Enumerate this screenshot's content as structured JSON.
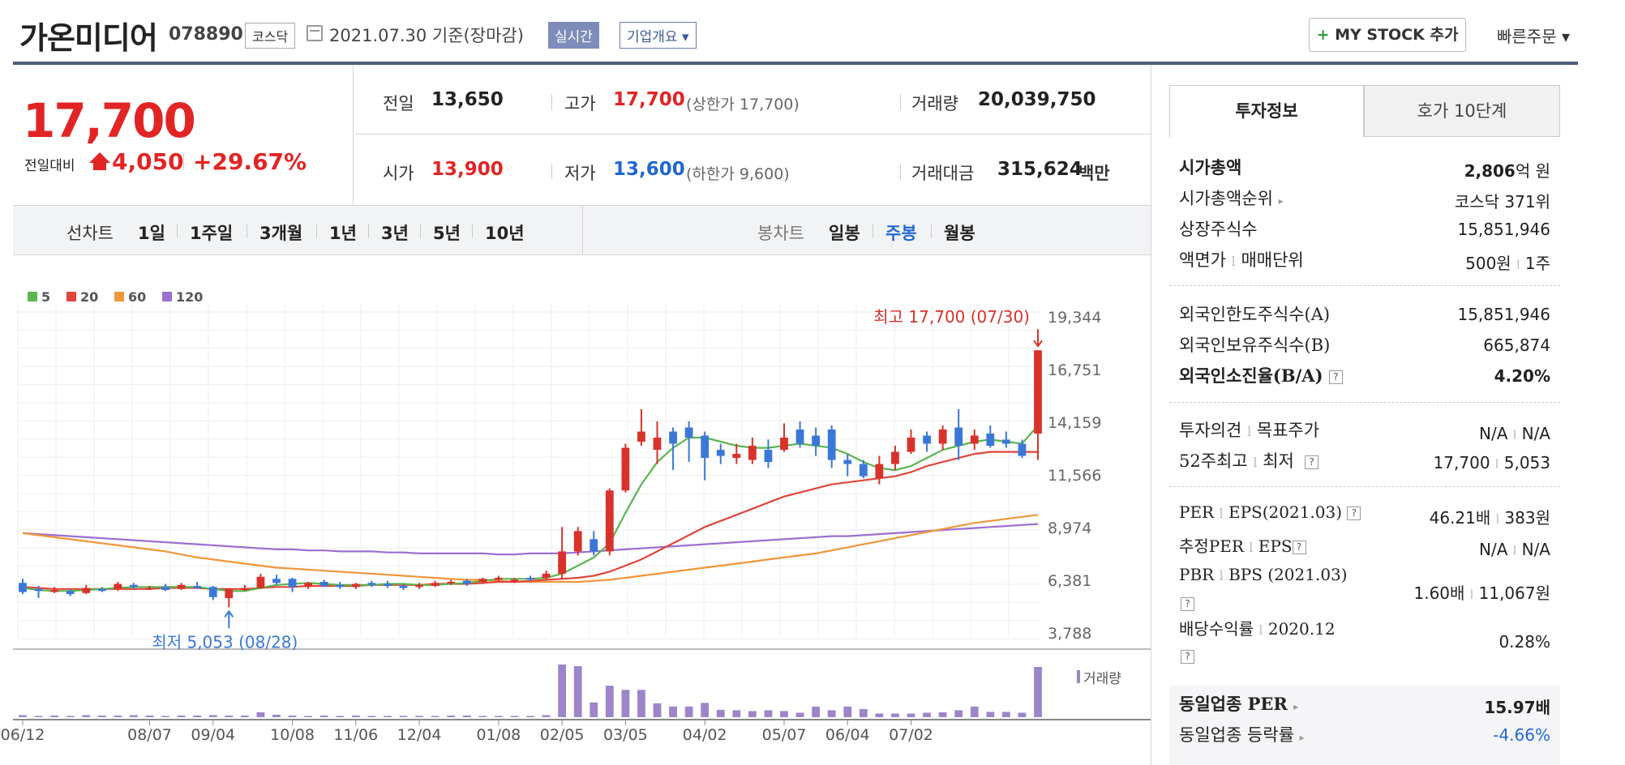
{
  "header": {
    "title": "가온미디어",
    "code": "078890",
    "market": "코스닥",
    "date": "2021.07.30  기준(장마감)",
    "realtime_label": "실시간",
    "company_label": "기업개요 ▾",
    "mystock_label": "MY STOCK 추가",
    "mystock_plus": "+",
    "quick_order": "빠른주문 ▾"
  },
  "price": {
    "current": "17,700",
    "change_label": "전일대비",
    "change_value": "4,050",
    "change_pct": "+29.67%"
  },
  "info": {
    "prev_label": "전일",
    "prev_value": "13,650",
    "high_label": "고가",
    "high_value": "17,700",
    "high_sub": "(상한가 17,700)",
    "volume_label": "거래량",
    "volume_value": "20,039,750",
    "open_label": "시가",
    "open_value": "13,900",
    "low_label": "저가",
    "low_value": "13,600",
    "low_sub": "(하한가 9,600)",
    "amount_label": "거래대금",
    "amount_value": "315,624",
    "amount_unit": "백만"
  },
  "period_bar": {
    "line_label": "선차트",
    "line_periods": [
      "1일",
      "1주일",
      "3개월",
      "1년",
      "3년",
      "5년",
      "10년"
    ],
    "candle_label": "봉차트",
    "candle_periods": [
      "일봉",
      "주봉",
      "월봉"
    ],
    "candle_selected": "주봉"
  },
  "chart_data": {
    "type": "candlestick",
    "legend": [
      {
        "name": "5",
        "color": "#5bb550"
      },
      {
        "name": "20",
        "color": "#e0453a"
      },
      {
        "name": "60",
        "color": "#f0953a"
      },
      {
        "name": "120",
        "color": "#9b6fd1"
      }
    ],
    "y_ticks": [
      "19,344",
      "16,751",
      "14,159",
      "11,566",
      "8,974",
      "6,381",
      "3,788"
    ],
    "ylim": [
      3788,
      19344
    ],
    "x_ticks": [
      "06/12",
      "08/07",
      "09/04",
      "10/08",
      "11/06",
      "12/04",
      "01/08",
      "02/05",
      "03/05",
      "04/02",
      "05/07",
      "06/04",
      "07/02"
    ],
    "high_annotation": "최고 17,700 (07/30)",
    "low_annotation": "최저 5,053 (08/28)",
    "volume_label": "거래량",
    "candles": [
      [
        6250,
        5800,
        6450,
        5700
      ],
      [
        5950,
        5850,
        6100,
        5500
      ],
      [
        5800,
        5900,
        6050,
        5750
      ],
      [
        5850,
        5700,
        5950,
        5600
      ],
      [
        5750,
        6000,
        6150,
        5700
      ],
      [
        5950,
        5850,
        6050,
        5800
      ],
      [
        5950,
        6200,
        6300,
        5850
      ],
      [
        6150,
        6050,
        6250,
        5950
      ],
      [
        6000,
        6000,
        6100,
        5900
      ],
      [
        6050,
        5900,
        6200,
        5850
      ],
      [
        5950,
        6150,
        6250,
        5900
      ],
      [
        6100,
        6000,
        6300,
        5950
      ],
      [
        6050,
        5550,
        6100,
        5400
      ],
      [
        5500,
        5950,
        6000,
        5053
      ],
      [
        5900,
        6000,
        6150,
        5850
      ],
      [
        6000,
        6550,
        6700,
        5950
      ],
      [
        6450,
        6250,
        6650,
        6150
      ],
      [
        6450,
        6050,
        6500,
        5800
      ],
      [
        6050,
        6250,
        6300,
        5950
      ],
      [
        6300,
        6100,
        6400,
        6050
      ],
      [
        6150,
        6050,
        6300,
        5950
      ],
      [
        6050,
        6200,
        6250,
        5950
      ],
      [
        6250,
        6150,
        6350,
        6050
      ],
      [
        6200,
        6100,
        6350,
        6000
      ],
      [
        6100,
        6000,
        6200,
        5900
      ],
      [
        6050,
        6150,
        6250,
        5950
      ],
      [
        6100,
        6250,
        6350,
        6050
      ],
      [
        6250,
        6300,
        6400,
        6150
      ],
      [
        6350,
        6200,
        6450,
        6100
      ],
      [
        6300,
        6450,
        6500,
        6200
      ],
      [
        6400,
        6500,
        6600,
        6300
      ],
      [
        6350,
        6400,
        6500,
        6250
      ],
      [
        6500,
        6450,
        6600,
        6350
      ],
      [
        6500,
        6700,
        6850,
        6400
      ],
      [
        6700,
        7800,
        9000,
        6450
      ],
      [
        7800,
        8800,
        9000,
        7600
      ],
      [
        8400,
        7800,
        8800,
        7600
      ],
      [
        7800,
        10800,
        10900,
        7600
      ],
      [
        10800,
        12900,
        13100,
        10700
      ],
      [
        13200,
        13700,
        14800,
        13000
      ],
      [
        12800,
        13400,
        14200,
        12100
      ],
      [
        13700,
        13100,
        13900,
        11800
      ],
      [
        13900,
        13400,
        14200,
        12200
      ],
      [
        13500,
        12400,
        13700,
        11300
      ],
      [
        12800,
        12500,
        13100,
        12100
      ],
      [
        12400,
        12600,
        13100,
        12100
      ],
      [
        12300,
        13000,
        13400,
        12100
      ],
      [
        12800,
        12200,
        13300,
        11900
      ],
      [
        12800,
        13400,
        14100,
        12700
      ],
      [
        13800,
        13100,
        14200,
        12900
      ],
      [
        13500,
        13000,
        13900,
        12500
      ],
      [
        13800,
        12300,
        14000,
        11900
      ],
      [
        12300,
        12100,
        12600,
        11500
      ],
      [
        12100,
        11500,
        12300,
        11400
      ],
      [
        11400,
        12100,
        12500,
        11100
      ],
      [
        12100,
        12700,
        13000,
        11800
      ],
      [
        12700,
        13400,
        13800,
        12600
      ],
      [
        13500,
        13100,
        13700,
        12700
      ],
      [
        13100,
        13800,
        14000,
        12800
      ],
      [
        13900,
        13000,
        14800,
        12300
      ],
      [
        13100,
        13500,
        13800,
        12800
      ],
      [
        13600,
        13000,
        14000,
        12900
      ],
      [
        13300,
        13100,
        13700,
        12900
      ],
      [
        13100,
        12500,
        13300,
        12400
      ],
      [
        13600,
        17700,
        17700,
        12300
      ]
    ],
    "ma5": [
      6000,
      5900,
      5850,
      5850,
      5900,
      5950,
      6000,
      6050,
      6050,
      6050,
      6050,
      6050,
      5950,
      5850,
      5850,
      6000,
      6150,
      6200,
      6250,
      6200,
      6150,
      6150,
      6150,
      6200,
      6200,
      6150,
      6150,
      6200,
      6250,
      6350,
      6450,
      6450,
      6450,
      6500,
      6700,
      7100,
      7500,
      8200,
      9700,
      11100,
      12200,
      12900,
      13400,
      13400,
      13200,
      13000,
      12900,
      12900,
      13000,
      13100,
      13000,
      12900,
      12600,
      12200,
      11900,
      11800,
      12000,
      12400,
      12800,
      13000,
      13200,
      13300,
      13200,
      13100,
      14000
    ],
    "ma20": [
      6050,
      6000,
      5950,
      5950,
      5950,
      5950,
      5950,
      5950,
      5950,
      6000,
      6000,
      6000,
      5950,
      5950,
      5950,
      6000,
      6050,
      6050,
      6100,
      6100,
      6100,
      6100,
      6150,
      6150,
      6150,
      6150,
      6200,
      6200,
      6200,
      6250,
      6300,
      6300,
      6350,
      6400,
      6450,
      6500,
      6600,
      6800,
      7100,
      7400,
      7800,
      8200,
      8600,
      9000,
      9300,
      9600,
      9900,
      10200,
      10500,
      10700,
      10900,
      11100,
      11200,
      11300,
      11400,
      11500,
      11700,
      12000,
      12200,
      12400,
      12600,
      12700,
      12700,
      12700,
      12700
    ],
    "ma60": [
      8700,
      8600,
      8500,
      8400,
      8300,
      8200,
      8100,
      8000,
      7900,
      7800,
      7650,
      7500,
      7400,
      7300,
      7200,
      7100,
      7000,
      6950,
      6900,
      6850,
      6800,
      6750,
      6700,
      6650,
      6600,
      6550,
      6500,
      6450,
      6400,
      6400,
      6350,
      6300,
      6300,
      6300,
      6300,
      6300,
      6350,
      6400,
      6500,
      6600,
      6700,
      6800,
      6900,
      7000,
      7100,
      7200,
      7300,
      7400,
      7500,
      7600,
      7700,
      7850,
      8000,
      8150,
      8300,
      8450,
      8600,
      8750,
      8900,
      9050,
      9200,
      9300,
      9400,
      9500,
      9600
    ],
    "ma120": [
      8700,
      8650,
      8600,
      8550,
      8500,
      8450,
      8400,
      8350,
      8300,
      8250,
      8200,
      8150,
      8100,
      8050,
      8000,
      7950,
      7900,
      7900,
      7850,
      7850,
      7800,
      7800,
      7800,
      7750,
      7750,
      7700,
      7700,
      7700,
      7700,
      7700,
      7650,
      7650,
      7700,
      7700,
      7700,
      7750,
      7800,
      7850,
      7900,
      7950,
      8000,
      8050,
      8100,
      8150,
      8200,
      8250,
      8300,
      8350,
      8400,
      8450,
      8500,
      8550,
      8550,
      8600,
      8650,
      8700,
      8750,
      8800,
      8850,
      8900,
      8950,
      9000,
      9050,
      9100,
      9150
    ],
    "volumes": [
      0.5,
      0.3,
      0.4,
      0.3,
      0.5,
      0.4,
      0.4,
      0.5,
      0.4,
      0.3,
      0.4,
      0.4,
      0.5,
      0.4,
      0.4,
      1.2,
      0.6,
      0.4,
      0.3,
      0.4,
      0.3,
      0.4,
      0.3,
      0.3,
      0.3,
      0.3,
      0.3,
      0.4,
      0.4,
      0.3,
      0.3,
      0.3,
      0.3,
      0.5,
      12.9,
      12.5,
      3.6,
      7.7,
      6.7,
      6.7,
      3.4,
      2.6,
      2.6,
      3.5,
      1.8,
      1.7,
      1.5,
      1.7,
      1.5,
      1.1,
      2.6,
      1.7,
      2.6,
      2.0,
      0.9,
      0.9,
      0.9,
      1.1,
      1.2,
      1.7,
      2.6,
      1.3,
      1.3,
      1.1,
      12.3
    ]
  },
  "right_panel": {
    "tab_invest": "투자정보",
    "tab_hoga": "호가 10단계",
    "market_cap_label": "시가총액",
    "market_cap_value": "2,806",
    "market_cap_unit": "억 원",
    "cap_rank_label": "시가총액순위",
    "cap_rank_value": "코스닥 371위",
    "shares_label": "상장주식수",
    "shares_value": "15,851,946",
    "par_label": "액면가",
    "par_label2": "매매단위",
    "par_value": "500원",
    "par_value2": "1주",
    "foreign_limit_label": "외국인한도주식수(A)",
    "foreign_limit_value": "15,851,946",
    "foreign_hold_label": "외국인보유주식수(B)",
    "foreign_hold_value": "665,874",
    "foreign_ratio_label": "외국인소진율(B/A)",
    "foreign_ratio_value": "4.20%",
    "opinion_label": "투자의견",
    "target_label": "목표주가",
    "opinion_value": "N/A",
    "target_value": "N/A",
    "w52_label": "52주최고",
    "w52_low_label": "최저",
    "w52_high_value": "17,700",
    "w52_low_value": "5,053",
    "per_label": "PER",
    "eps_label": "EPS(2021.03)",
    "per_value": "46.21배",
    "eps_value": "383원",
    "est_per_label": "추정PER",
    "est_eps_label": "EPS",
    "est_per_value": "N/A",
    "est_eps_value": "N/A",
    "pbr_label": "PBR",
    "bps_label": "BPS (2021.03)",
    "pbr_value": "1.60배",
    "bps_value": "11,067원",
    "div_label": "배당수익률",
    "div_date": "2020.12",
    "div_value": "0.28%",
    "peer_per_label": "동일업종 PER",
    "peer_per_value": "15.97배",
    "peer_rate_label": "동일업종 등락률",
    "peer_rate_value": "-4.66%",
    "help_icon": "?"
  }
}
